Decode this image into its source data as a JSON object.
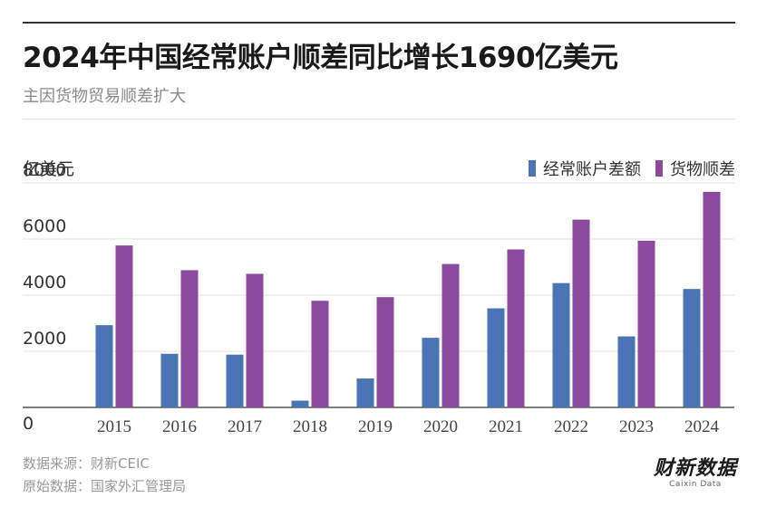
{
  "header": {
    "title": "2024年中国经常账户顺差同比增长1690亿美元",
    "subtitle": "主因货物贸易顺差扩大"
  },
  "footer": {
    "source": "数据来源：财新CEIC",
    "origin": "原始数据：国家外汇管理局",
    "logo_main": "财新数据",
    "logo_sub": "Caixin Data"
  },
  "colors": {
    "current_account": "#4a74b5",
    "goods_surplus": "#8c4a9e"
  },
  "chart_data": {
    "type": "bar",
    "unit_label": "亿美元",
    "categories": [
      "2015",
      "2016",
      "2017",
      "2018",
      "2019",
      "2020",
      "2021",
      "2022",
      "2023",
      "2024"
    ],
    "series": [
      {
        "name": "经常账户差额",
        "values": [
          2930,
          1910,
          1880,
          240,
          1030,
          2480,
          3530,
          4430,
          2530,
          4220
        ]
      },
      {
        "name": "货物顺差",
        "values": [
          5770,
          4890,
          4760,
          3800,
          3930,
          5110,
          5630,
          6690,
          5940,
          7680
        ]
      }
    ],
    "ylim": [
      0,
      8000
    ],
    "yticks": [
      0,
      2000,
      4000,
      6000,
      8000
    ],
    "grid": true,
    "legend_position": "top-right"
  }
}
